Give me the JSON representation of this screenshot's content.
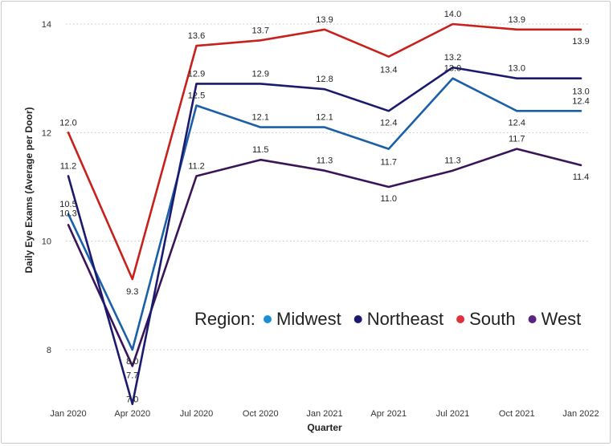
{
  "chart_data": {
    "type": "line",
    "categories": [
      "Jan 2020",
      "Apr 2020",
      "Jul 2020",
      "Oct 2020",
      "Jan 2021",
      "Apr 2021",
      "Jul 2021",
      "Oct 2021",
      "Jan 2022"
    ],
    "xlabel": "Quarter",
    "ylabel": "Daily Eye Exams (Average per Door)",
    "ylim": [
      7.0,
      14.3
    ],
    "yticks": [
      8,
      10,
      12,
      14
    ],
    "grid": true,
    "legend": {
      "title": "Region:",
      "position": "bottom-right",
      "entries": [
        "Midwest",
        "Northeast",
        "South",
        "West"
      ]
    },
    "series": [
      {
        "name": "South",
        "color": "#c8201c",
        "values": [
          12.0,
          9.3,
          13.6,
          13.7,
          13.9,
          13.4,
          14.0,
          13.9,
          13.9
        ],
        "labels": [
          "12.0",
          "9.3",
          "13.6",
          "13.7",
          "13.9",
          "13.4",
          "14.0",
          "13.9",
          "13.9"
        ]
      },
      {
        "name": "Northeast",
        "color": "#1a1a6e",
        "values": [
          11.2,
          7.0,
          12.9,
          12.9,
          12.8,
          12.4,
          13.2,
          13.0,
          13.0
        ],
        "labels": [
          "11.2",
          "7.0",
          "12.9",
          "12.9",
          "12.8",
          "12.4",
          "13.2",
          "13.0",
          "13.0"
        ]
      },
      {
        "name": "Midwest",
        "color": "#1b5fa8",
        "values": [
          10.5,
          8.0,
          12.5,
          12.1,
          12.1,
          11.7,
          13.0,
          12.4,
          12.4
        ],
        "labels": [
          "10.5",
          "8.0",
          "12.5",
          "12.1",
          "12.1",
          "11.7",
          "13.0",
          "12.4",
          "12.4"
        ]
      },
      {
        "name": "West",
        "color": "#3a1458",
        "values": [
          10.3,
          7.7,
          11.2,
          11.5,
          11.3,
          11.0,
          11.3,
          11.7,
          11.4
        ],
        "labels": [
          "10.3",
          "7.7",
          "11.2",
          "11.5",
          "11.3",
          "11.0",
          "11.3",
          "11.7",
          "11.4"
        ]
      }
    ],
    "legend_colors": {
      "Midwest": "#1a8fd6",
      "Northeast": "#1a1a6e",
      "South": "#e0313a",
      "West": "#5b2283"
    }
  }
}
